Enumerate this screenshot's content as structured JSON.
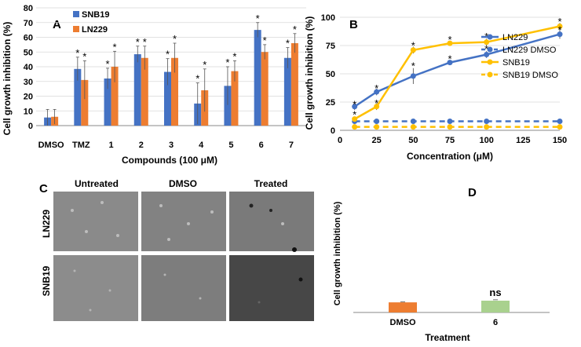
{
  "colors": {
    "snb19_bar": "#4472C4",
    "ln229_bar": "#ED7D31",
    "ln229_line": "#4472C4",
    "snb19_line": "#FFC000",
    "panel_d_dmso": "#ED7D31",
    "panel_d_6": "#A9D18E",
    "micro_light": "#7f7f7f",
    "micro_dark": "#444444"
  },
  "chart_data": [
    {
      "panel": "A",
      "type": "bar",
      "ylabel": "Cell growth inhibition (%)",
      "xlabel": "Compounds (100 μM)",
      "ylim": [
        0,
        80
      ],
      "yticks": [
        "0",
        "10",
        "20",
        "30",
        "40",
        "50",
        "60",
        "70",
        "80"
      ],
      "categories": [
        "DMSO",
        "TMZ",
        "1",
        "2",
        "3",
        "4",
        "5",
        "6",
        "7"
      ],
      "series": [
        {
          "name": "SNB19",
          "values": [
            5.5,
            38.5,
            32,
            48.5,
            36.5,
            15,
            27,
            65,
            46
          ],
          "errors": [
            5.5,
            8,
            7,
            5.5,
            9,
            14,
            13,
            5,
            7
          ]
        },
        {
          "name": "LN229",
          "values": [
            6,
            31,
            40,
            46,
            46,
            24,
            37,
            50,
            56
          ],
          "errors": [
            5,
            13,
            10.5,
            8,
            10,
            14.5,
            7,
            5,
            6.5
          ]
        }
      ],
      "significance": [
        [
          false,
          true,
          true,
          true,
          true,
          true,
          true,
          true,
          true
        ],
        [
          false,
          true,
          true,
          true,
          true,
          true,
          true,
          true,
          true
        ]
      ],
      "significance_mark": "*"
    },
    {
      "panel": "B",
      "type": "line",
      "ylabel": "Cell growth inhibition (%)",
      "xlabel": "Concentration (μM)",
      "xlim": [
        0,
        150
      ],
      "ylim": [
        0,
        100
      ],
      "xticks": [
        "0",
        "25",
        "50",
        "75",
        "100",
        "125",
        "150"
      ],
      "yticks": [
        "0",
        "25",
        "50",
        "75",
        "100"
      ],
      "x": [
        10,
        25,
        50,
        75,
        100,
        150
      ],
      "series": [
        {
          "name": "LN229",
          "values": [
            21,
            34,
            48,
            60,
            67,
            85
          ],
          "errors": [
            3,
            3,
            7,
            2,
            3,
            4
          ],
          "dashed": false
        },
        {
          "name": "LN229 DMSO",
          "values": [
            8,
            8,
            8,
            8,
            8,
            8
          ],
          "errors": [
            0,
            0,
            0,
            0,
            0,
            0
          ],
          "dashed": true
        },
        {
          "name": "SNB19",
          "values": [
            10,
            21,
            71,
            77,
            78,
            92
          ],
          "errors": [
            2,
            3,
            3,
            2,
            3,
            3
          ],
          "dashed": false
        },
        {
          "name": "SNB19 DMSO",
          "values": [
            3,
            3,
            3,
            3,
            3,
            3
          ],
          "errors": [
            0,
            0,
            0,
            0,
            0,
            0
          ],
          "dashed": true
        }
      ],
      "significance_mark": "*",
      "significance_values": [
        22,
        36,
        56,
        62,
        71,
        88,
        13,
        23,
        74,
        79,
        82,
        95
      ]
    },
    {
      "panel": "D",
      "type": "bar",
      "ylabel": "Cell growth inhibition (%)",
      "xlabel": "Treatment",
      "ylim": [
        0,
        100
      ],
      "categories": [
        "DMSO",
        "6"
      ],
      "values": [
        9,
        10.5
      ],
      "errors": [
        0.5,
        0.8
      ],
      "annotation": "ns"
    }
  ],
  "panel_c": {
    "label": "C",
    "columns": [
      "Untreated",
      "DMSO",
      "Treated"
    ],
    "rows": [
      "LN229",
      "SNB19"
    ]
  }
}
